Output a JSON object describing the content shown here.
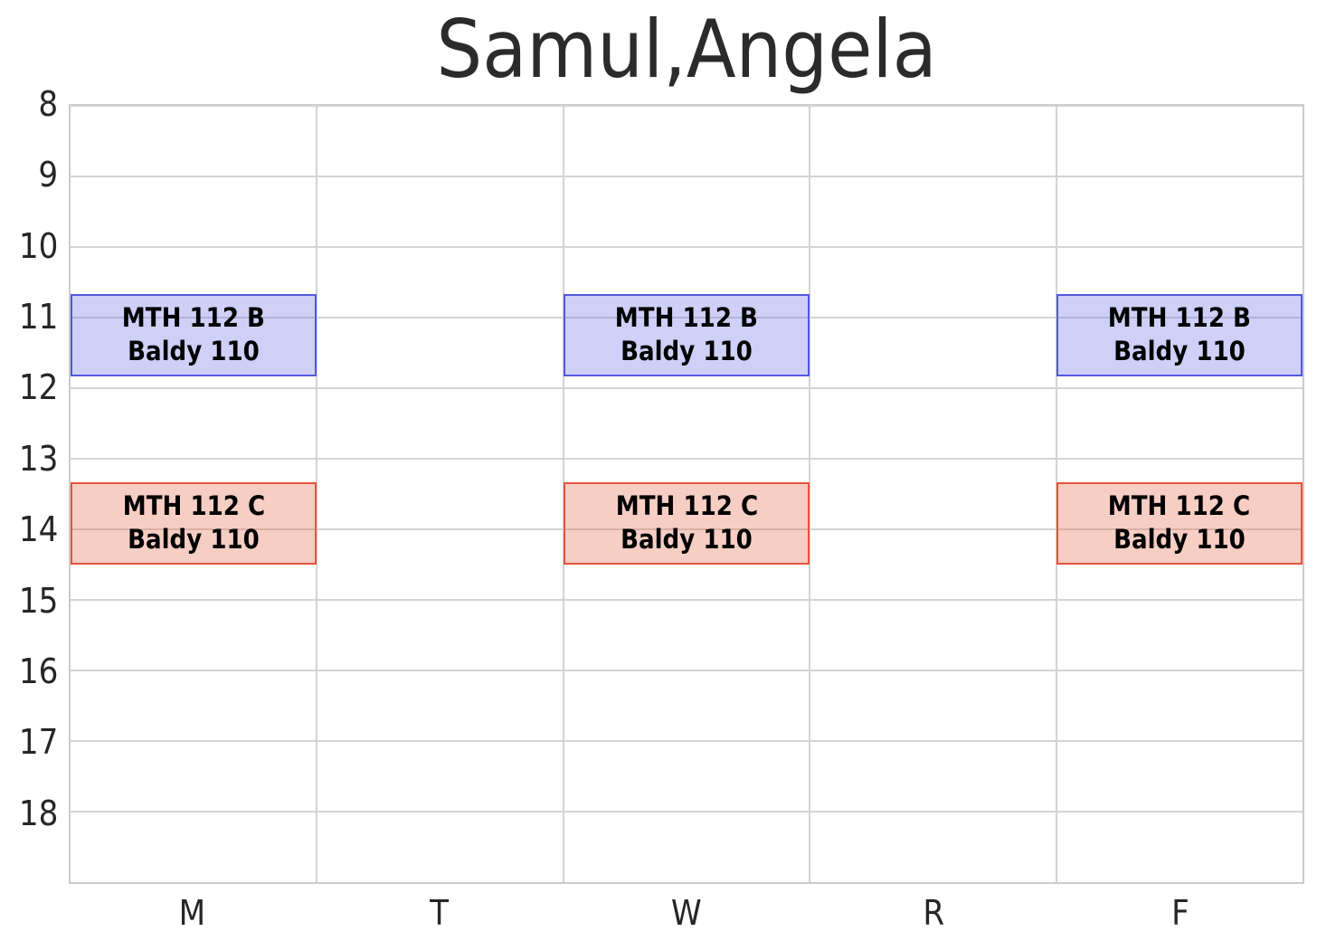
{
  "title": "Samul,Angela",
  "chart_data": {
    "type": "schedule",
    "title": "Samul,Angela",
    "x": {
      "categories": [
        "M",
        "T",
        "W",
        "R",
        "F"
      ]
    },
    "y": {
      "min": 8,
      "max": 19,
      "direction": "down",
      "ticks": [
        "8",
        "9",
        "10",
        "11",
        "12",
        "13",
        "14",
        "15",
        "16",
        "17",
        "18"
      ]
    },
    "grid": true,
    "legend": false,
    "events": [
      {
        "course": "MTH 112 B",
        "room": "Baldy 110",
        "days": [
          "M",
          "W",
          "F"
        ],
        "start_hour": 10.67,
        "end_hour": 11.83,
        "start_time": "10:40",
        "end_time": "11:50",
        "fill": "rgba(92,98,232,0.30)",
        "border": "#5158e0"
      },
      {
        "course": "MTH 112 C",
        "room": "Baldy 110",
        "days": [
          "M",
          "W",
          "F"
        ],
        "start_hour": 13.33,
        "end_hour": 14.5,
        "start_time": "13:20",
        "end_time": "14:30",
        "fill": "rgba(228,92,58,0.30)",
        "border": "#e5523a"
      }
    ],
    "colors": {
      "background": "#ffffff",
      "gridline": "#d4d4d4",
      "frame": "#cccccc",
      "tick_text": "#262626",
      "title_text": "#2b2b2b",
      "block_text": "#000000"
    }
  }
}
